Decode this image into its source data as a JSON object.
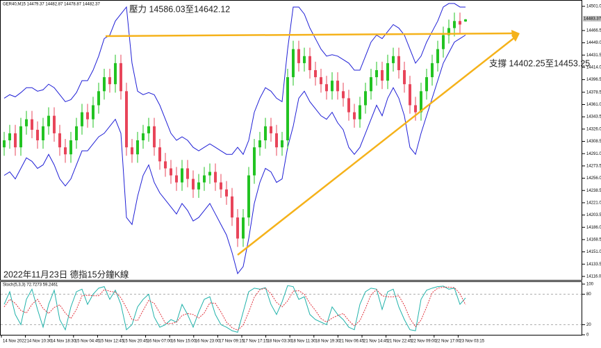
{
  "chart_data": [
    {
      "type": "candlestick",
      "title": "GER40,M15 14479.37 14482.87 14478.87 14482.37",
      "annotations": [
        "壓力 14586.03至14642.12",
        "支撐 14402.25至14453.25",
        "2022年11月23日 德指15分鐘K線"
      ],
      "x_labels": [
        "14 Nov 2022",
        "14 Nov 10:30",
        "14 Nov 18:30",
        "15 Nov 04:45",
        "15 Nov 12:45",
        "15 Nov 20:45",
        "16 Nov 07:00",
        "16 Nov 15:00",
        "16 Nov 23:00",
        "17 Nov 09:15",
        "17 Nov 17:15",
        "18 Nov 03:30",
        "18 Nov 11:30",
        "18 Nov 19:30",
        "21 Nov 06:45",
        "21 Nov 14:45",
        "21 Nov 22:45",
        "22 Nov 09:00",
        "22 Nov 17:00",
        "23 Nov 03:15"
      ],
      "up_color": "#22c322",
      "down_color": "#e8455a",
      "open": [
        14300,
        14310,
        14320,
        14300,
        14330,
        14340,
        14325,
        14310,
        14330,
        14345,
        14320,
        14300,
        14290,
        14310,
        14330,
        14350,
        14340,
        14360,
        14380,
        14400,
        14390,
        14420,
        14380,
        14300,
        14290,
        14310,
        14320,
        14330,
        14300,
        14280,
        14270,
        14260,
        14250,
        14270,
        14255,
        14240,
        14250,
        14260,
        14265,
        14250,
        14240,
        14230,
        14200,
        14170,
        14200,
        14260,
        14300,
        14310,
        14330,
        14320,
        14300,
        14310,
        14400,
        14440,
        14420,
        14430,
        14410,
        14400,
        14390,
        14380,
        14395,
        14380,
        14370,
        14350,
        14340,
        14360,
        14380,
        14400,
        14410,
        14395,
        14420,
        14430,
        14410,
        14390,
        14360,
        14350,
        14380,
        14400,
        14420,
        14440,
        14460,
        14470,
        14480,
        14479.37
      ],
      "high": [
        14322,
        14332,
        14332,
        14342,
        14352,
        14352,
        14337,
        14342,
        14357,
        14357,
        14332,
        14312,
        14322,
        14342,
        14362,
        14362,
        14372,
        14392,
        14412,
        14412,
        14432,
        14432,
        14392,
        14312,
        14322,
        14332,
        14342,
        14342,
        14312,
        14292,
        14282,
        14272,
        14282,
        14282,
        14267,
        14262,
        14272,
        14277,
        14277,
        14262,
        14252,
        14242,
        14212,
        14212,
        14272,
        14312,
        14322,
        14342,
        14342,
        14332,
        14322,
        14412,
        14452,
        14452,
        14442,
        14442,
        14422,
        14412,
        14402,
        14407,
        14407,
        14392,
        14382,
        14362,
        14372,
        14392,
        14412,
        14422,
        14422,
        14432,
        14442,
        14442,
        14422,
        14402,
        14372,
        14392,
        14412,
        14432,
        14452,
        14472,
        14482,
        14492,
        14492,
        14482.87
      ],
      "low": [
        14288,
        14298,
        14288,
        14288,
        14318,
        14313,
        14298,
        14298,
        14318,
        14308,
        14288,
        14278,
        14278,
        14298,
        14318,
        14328,
        14328,
        14348,
        14368,
        14378,
        14378,
        14368,
        14288,
        14278,
        14278,
        14298,
        14308,
        14288,
        14268,
        14258,
        14248,
        14238,
        14238,
        14243,
        14228,
        14228,
        14238,
        14248,
        14238,
        14228,
        14218,
        14188,
        14158,
        14158,
        14188,
        14248,
        14288,
        14298,
        14308,
        14288,
        14288,
        14298,
        14388,
        14408,
        14408,
        14398,
        14388,
        14378,
        14368,
        14368,
        14368,
        14358,
        14338,
        14328,
        14328,
        14348,
        14368,
        14388,
        14383,
        14383,
        14408,
        14398,
        14378,
        14348,
        14338,
        14338,
        14368,
        14388,
        14408,
        14428,
        14448,
        14458,
        14463,
        14478.87
      ],
      "close": [
        14310,
        14320,
        14300,
        14330,
        14340,
        14325,
        14310,
        14330,
        14345,
        14320,
        14300,
        14290,
        14310,
        14330,
        14350,
        14340,
        14360,
        14380,
        14400,
        14390,
        14420,
        14380,
        14300,
        14290,
        14310,
        14320,
        14330,
        14300,
        14280,
        14270,
        14260,
        14250,
        14270,
        14255,
        14240,
        14250,
        14260,
        14265,
        14250,
        14240,
        14230,
        14200,
        14170,
        14200,
        14260,
        14300,
        14310,
        14330,
        14320,
        14300,
        14310,
        14400,
        14440,
        14420,
        14430,
        14410,
        14400,
        14390,
        14380,
        14395,
        14380,
        14370,
        14350,
        14340,
        14360,
        14380,
        14400,
        14410,
        14395,
        14420,
        14430,
        14410,
        14390,
        14360,
        14350,
        14380,
        14400,
        14420,
        14440,
        14460,
        14470,
        14480,
        14475,
        14482.37
      ],
      "band_color": "#1f1fd6",
      "upper": [
        14370,
        14375,
        14372,
        14378,
        14385,
        14385,
        14380,
        14382,
        14390,
        14385,
        14375,
        14365,
        14368,
        14378,
        14395,
        14395,
        14410,
        14430,
        14455,
        14460,
        14480,
        14490,
        14500,
        14420,
        14380,
        14375,
        14378,
        14375,
        14360,
        14340,
        14320,
        14310,
        14315,
        14310,
        14300,
        14295,
        14300,
        14305,
        14300,
        14295,
        14290,
        14290,
        14300,
        14290,
        14310,
        14350,
        14370,
        14385,
        14380,
        14370,
        14365,
        14440,
        14500,
        14500,
        14490,
        14470,
        14455,
        14440,
        14430,
        14432,
        14430,
        14425,
        14420,
        14410,
        14410,
        14430,
        14450,
        14460,
        14455,
        14465,
        14475,
        14470,
        14460,
        14440,
        14420,
        14430,
        14450,
        14465,
        14480,
        14500,
        14505,
        14505,
        14500,
        14500
      ],
      "lower": [
        14260,
        14265,
        14255,
        14270,
        14285,
        14280,
        14270,
        14275,
        14290,
        14275,
        14255,
        14245,
        14255,
        14275,
        14295,
        14295,
        14305,
        14315,
        14320,
        14330,
        14340,
        14320,
        14200,
        14190,
        14230,
        14260,
        14275,
        14250,
        14235,
        14225,
        14215,
        14205,
        14220,
        14210,
        14195,
        14200,
        14210,
        14220,
        14205,
        14190,
        14175,
        14150,
        14120,
        14130,
        14170,
        14220,
        14250,
        14270,
        14265,
        14250,
        14255,
        14300,
        14330,
        14370,
        14380,
        14365,
        14355,
        14345,
        14340,
        14350,
        14335,
        14325,
        14300,
        14290,
        14300,
        14320,
        14340,
        14360,
        14345,
        14370,
        14385,
        14370,
        14345,
        14300,
        14290,
        14320,
        14345,
        14370,
        14395,
        14420,
        14435,
        14450,
        14455,
        14460
      ],
      "price_marker": 14483.37,
      "ylim": [
        14111,
        14510
      ],
      "yticks": [
        {
          "value": 14501,
          "label": "14501.00"
        },
        {
          "value": 14466.5,
          "label": "14466.50"
        },
        {
          "value": 14449,
          "label": "14449.00"
        },
        {
          "value": 14431.5,
          "label": "14431.50"
        },
        {
          "value": 14414,
          "label": "14414.00"
        },
        {
          "value": 14396.5,
          "label": "14396.50"
        },
        {
          "value": 14378.5,
          "label": "14378.50"
        },
        {
          "value": 14361,
          "label": "14361.00"
        },
        {
          "value": 14343.5,
          "label": "14343.50"
        },
        {
          "value": 14326,
          "label": "14326.00"
        },
        {
          "value": 14308.5,
          "label": "14308.50"
        },
        {
          "value": 14291,
          "label": "14291.00"
        },
        {
          "value": 14273.5,
          "label": "14273.50"
        },
        {
          "value": 14256,
          "label": "14256.00"
        },
        {
          "value": 14238.5,
          "label": "14238.50"
        },
        {
          "value": 14221,
          "label": "14221.00"
        },
        {
          "value": 14203.5,
          "label": "14203.50"
        },
        {
          "value": 14186,
          "label": "14186.00"
        },
        {
          "value": 14168.5,
          "label": "14168.50"
        },
        {
          "value": 14151,
          "label": "14151.00"
        },
        {
          "value": 14133.5,
          "label": "14133.50"
        },
        {
          "value": 14116,
          "label": "14116.00"
        }
      ]
    },
    {
      "type": "line",
      "title": "Stoch(5,3,3) 72.7273 59.2461",
      "series": [
        {
          "color": "#20b2aa",
          "values": [
            60,
            85,
            40,
            20,
            70,
            90,
            50,
            15,
            60,
            88,
            30,
            10,
            55,
            85,
            90,
            60,
            80,
            92,
            95,
            70,
            88,
            60,
            10,
            20,
            55,
            70,
            80,
            35,
            15,
            20,
            30,
            25,
            60,
            40,
            15,
            45,
            70,
            75,
            40,
            20,
            15,
            8,
            5,
            45,
            85,
            92,
            90,
            93,
            60,
            40,
            65,
            97,
            95,
            70,
            75,
            40,
            30,
            25,
            20,
            55,
            40,
            30,
            15,
            10,
            60,
            85,
            92,
            90,
            50,
            85,
            90,
            55,
            30,
            10,
            8,
            70,
            88,
            92,
            95,
            96,
            90,
            92,
            60,
            72.7273
          ]
        },
        {
          "color": "#e0303a",
          "dashed": true,
          "values": [
            55,
            70,
            62,
            48,
            43,
            60,
            70,
            52,
            42,
            54,
            59,
            43,
            32,
            50,
            77,
            78,
            77,
            77,
            89,
            86,
            84,
            73,
            53,
            30,
            28,
            48,
            68,
            62,
            43,
            23,
            22,
            25,
            38,
            42,
            40,
            33,
            43,
            63,
            62,
            45,
            25,
            14,
            9,
            19,
            45,
            74,
            89,
            92,
            81,
            64,
            55,
            67,
            86,
            87,
            80,
            62,
            48,
            32,
            25,
            33,
            38,
            42,
            28,
            18,
            28,
            52,
            79,
            89,
            77,
            75,
            75,
            77,
            58,
            32,
            16,
            29,
            55,
            83,
            92,
            94,
            94,
            93,
            81,
            59.2461
          ]
        }
      ],
      "ylim": [
        0,
        100
      ],
      "yticks": [
        0,
        20,
        80,
        100
      ]
    }
  ]
}
